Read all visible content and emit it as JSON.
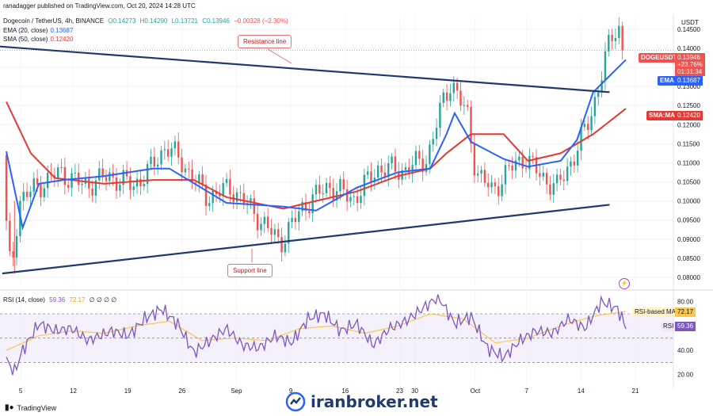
{
  "header": {
    "published": "ranadagger published on TradingView.com, Oct 20, 2024 14:28 UTC",
    "symbol": "Dogecoin / TetherUS, 4h, BINANCE",
    "ohlc": {
      "o": "O0.14273",
      "h": "H0.14290",
      "l": "L0.13721",
      "c": "C0.13946",
      "chg": "−0.00328 (−2.30%)"
    },
    "ema_label": "EMA (20, close)",
    "ema_value": "0.13687",
    "sma_label": "SMA (50, close)",
    "sma_value": "0.12420",
    "rsi_label": "RSI (14, close)",
    "rsi_value": "59.36",
    "rsi_ma_value": "72.17",
    "rsi_extra": "∅ ∅ ∅ ∅"
  },
  "axis_unit": "USDT",
  "price_tags": {
    "symbol": "DOGEUSDT",
    "price": "0.13946",
    "change": "+23.76%",
    "timer": "01:31:34",
    "ema_label": "EMA",
    "ema": "0.13687",
    "sma_label": "SMA:MA",
    "sma": "0.12420",
    "rsi_ma_label": "RSI-based MA",
    "rsi_ma": "72.17",
    "rsi_label": "RSI",
    "rsi": "59.36"
  },
  "annotations": {
    "resistance": "Resistance line",
    "support": "Support line"
  },
  "footer": {
    "brand": "TradingView",
    "watermark": "iranbroker.net"
  },
  "colors": {
    "up": "#26a69a",
    "down": "#ef5350",
    "ema": "#2962ff",
    "sma": "#e53935",
    "trend": "#1e3a6e",
    "rsi": "#7e57c2",
    "rsi_ma": "#f9c74f"
  },
  "chart_data": [
    {
      "type": "candlestick",
      "title": "Dogecoin / TetherUS, 4h, BINANCE",
      "x_ticks": [
        "5",
        "12",
        "19",
        "26",
        "Sep",
        "9",
        "16",
        "23",
        "30",
        "Oct",
        "7",
        "14",
        "21"
      ],
      "y_ticks": [
        0.145,
        0.14,
        0.135,
        0.13,
        0.125,
        0.12,
        0.115,
        0.11,
        0.105,
        0.1,
        0.095,
        0.09,
        0.085,
        0.08
      ],
      "ylim": [
        0.0775,
        0.1485
      ],
      "key_points": [
        {
          "date": "Aug 5",
          "price": 0.081
        },
        {
          "date": "Aug 24",
          "price": 0.1145
        },
        {
          "date": "Sep 7",
          "price": 0.089
        },
        {
          "date": "Sep 28",
          "price": 0.1315
        },
        {
          "date": "Oct 11",
          "price": 0.1035
        },
        {
          "date": "Oct 19",
          "price": 0.1465
        },
        {
          "date": "Oct 20",
          "price": 0.13946
        }
      ],
      "series": [
        {
          "name": "EMA (20, close)",
          "last": 0.13687,
          "points": [
            [
              0,
              0.113
            ],
            [
              2,
              0.093
            ],
            [
              4,
              0.1045
            ],
            [
              7,
              0.1055
            ],
            [
              12,
              0.1065
            ],
            [
              18,
              0.1085
            ],
            [
              20,
              0.1085
            ],
            [
              27,
              0.0995
            ],
            [
              34,
              0.0985
            ],
            [
              38,
              0.0975
            ],
            [
              43,
              0.1035
            ],
            [
              48,
              0.1075
            ],
            [
              52,
              0.1085
            ],
            [
              54,
              0.1175
            ],
            [
              55,
              0.123
            ],
            [
              57,
              0.1155
            ],
            [
              61,
              0.111
            ],
            [
              64,
              0.109
            ],
            [
              68,
              0.1105
            ],
            [
              70,
              0.116
            ],
            [
              72,
              0.1285
            ],
            [
              76,
              0.137
            ]
          ]
        },
        {
          "name": "SMA (50, close)",
          "last": 0.1242,
          "points": [
            [
              0,
              0.126
            ],
            [
              3,
              0.1125
            ],
            [
              6,
              0.106
            ],
            [
              12,
              0.1045
            ],
            [
              18,
              0.1055
            ],
            [
              23,
              0.1055
            ],
            [
              27,
              0.101
            ],
            [
              34,
              0.098
            ],
            [
              38,
              0.1
            ],
            [
              43,
              0.1025
            ],
            [
              48,
              0.1065
            ],
            [
              52,
              0.1085
            ],
            [
              54,
              0.1125
            ],
            [
              57,
              0.1175
            ],
            [
              61,
              0.1175
            ],
            [
              64,
              0.1105
            ],
            [
              68,
              0.1125
            ],
            [
              72,
              0.1175
            ],
            [
              76,
              0.1242
            ]
          ]
        }
      ],
      "trendlines": [
        {
          "name": "Resistance line",
          "from": [
            "Aug 1",
            0.1405
          ],
          "to": [
            "Oct 17",
            0.1285
          ]
        },
        {
          "name": "Support line",
          "from": [
            "Aug 2",
            0.081
          ],
          "to": [
            "Oct 17",
            0.099
          ]
        }
      ]
    },
    {
      "type": "line",
      "title": "RSI (14, close)",
      "y_ticks": [
        80,
        60,
        40,
        20
      ],
      "ylim": [
        12,
        87
      ],
      "bands": [
        70,
        50,
        30
      ],
      "series": [
        {
          "name": "RSI",
          "last": 59.36,
          "points": [
            [
              0,
              32
            ],
            [
              1,
              22
            ],
            [
              2,
              40
            ],
            [
              4,
              62
            ],
            [
              6,
              56
            ],
            [
              8,
              58
            ],
            [
              10,
              48
            ],
            [
              13,
              56
            ],
            [
              15,
              52
            ],
            [
              17,
              66
            ],
            [
              19,
              74
            ],
            [
              21,
              62
            ],
            [
              23,
              38
            ],
            [
              25,
              48
            ],
            [
              27,
              58
            ],
            [
              29,
              44
            ],
            [
              31,
              42
            ],
            [
              33,
              52
            ],
            [
              35,
              46
            ],
            [
              37,
              66
            ],
            [
              39,
              70
            ],
            [
              41,
              56
            ],
            [
              43,
              62
            ],
            [
              45,
              44
            ],
            [
              47,
              58
            ],
            [
              49,
              64
            ],
            [
              51,
              74
            ],
            [
              53,
              84
            ],
            [
              55,
              62
            ],
            [
              57,
              68
            ],
            [
              59,
              42
            ],
            [
              61,
              34
            ],
            [
              63,
              48
            ],
            [
              65,
              56
            ],
            [
              67,
              54
            ],
            [
              69,
              66
            ],
            [
              71,
              58
            ],
            [
              73,
              80
            ],
            [
              75,
              74
            ],
            [
              76,
              59
            ]
          ]
        },
        {
          "name": "RSI-based MA",
          "last": 72.17,
          "points": [
            [
              0,
              40
            ],
            [
              4,
              52
            ],
            [
              8,
              56
            ],
            [
              12,
              54
            ],
            [
              16,
              60
            ],
            [
              20,
              64
            ],
            [
              24,
              48
            ],
            [
              28,
              50
            ],
            [
              32,
              48
            ],
            [
              36,
              58
            ],
            [
              40,
              60
            ],
            [
              44,
              54
            ],
            [
              48,
              60
            ],
            [
              52,
              70
            ],
            [
              56,
              66
            ],
            [
              60,
              46
            ],
            [
              64,
              50
            ],
            [
              68,
              60
            ],
            [
              72,
              68
            ],
            [
              76,
              72
            ]
          ]
        }
      ]
    }
  ]
}
